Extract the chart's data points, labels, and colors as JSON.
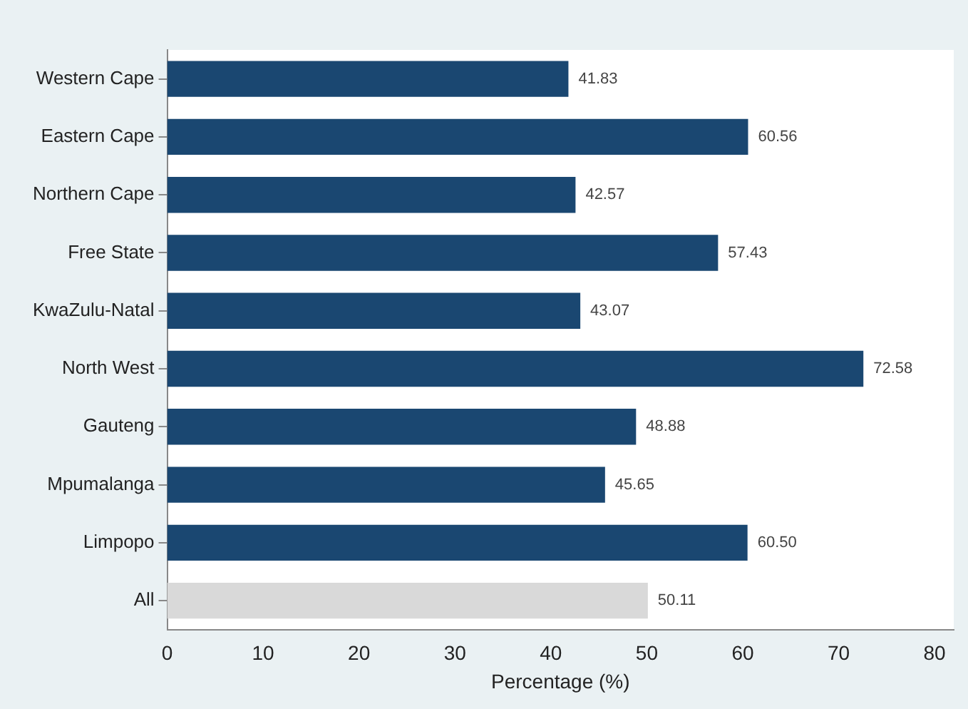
{
  "chart_data": {
    "type": "bar",
    "orientation": "horizontal",
    "xlabel": "Percentage (%)",
    "categories": [
      "Western Cape",
      "Eastern Cape",
      "Northern Cape",
      "Free State",
      "KwaZulu-Natal",
      "North West",
      "Gauteng",
      "Mpumalanga",
      "Limpopo",
      "All"
    ],
    "values": [
      41.83,
      60.56,
      42.57,
      57.43,
      43.07,
      72.58,
      48.88,
      45.65,
      60.5,
      50.11
    ],
    "value_labels": [
      "41.83",
      "60.56",
      "42.57",
      "57.43",
      "43.07",
      "72.58",
      "48.88",
      "45.65",
      "60.50",
      "50.11"
    ],
    "colors": [
      "#1a4771",
      "#1a4771",
      "#1a4771",
      "#1a4771",
      "#1a4771",
      "#1a4771",
      "#1a4771",
      "#1a4771",
      "#1a4771",
      "#d9d9d9"
    ],
    "xlim": [
      0,
      82
    ],
    "xticks": [
      0,
      10,
      20,
      30,
      40,
      50,
      60,
      70,
      80
    ],
    "grid": false,
    "legend": false
  }
}
